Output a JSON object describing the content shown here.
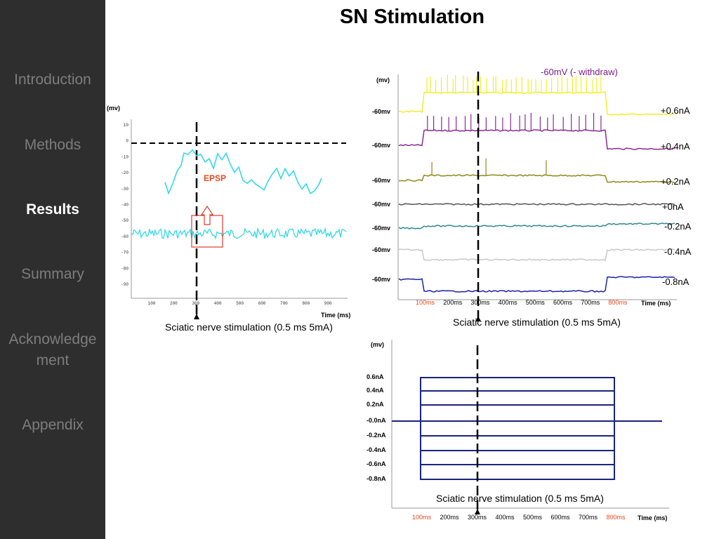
{
  "sidebar": {
    "items": [
      {
        "label": "Introduction",
        "active": false
      },
      {
        "label": "Methods",
        "active": false
      },
      {
        "label": "Results",
        "active": true
      },
      {
        "label": "Summary",
        "active": false
      },
      {
        "label": "Acknowledge ment",
        "active": false
      },
      {
        "label": "Appendix",
        "active": false
      }
    ]
  },
  "slide": {
    "title": "SN Stimulation"
  },
  "colors": {
    "sidebar_bg": "#2e2e2e",
    "sidebar_text": "#7d7d7d",
    "active_text": "#ffffff",
    "trace_cyan": "#35d8e8",
    "epsp_red": "#e8481c",
    "protocol_navy": "#1a237e"
  },
  "left_panel": {
    "ylabel": "(mv)",
    "yticks": [
      "10",
      "0",
      "-10",
      "-20",
      "-30",
      "-40",
      "-50",
      "-60",
      "-70",
      "-80",
      "-90"
    ],
    "xticks": [
      "100",
      "200",
      "300",
      "400",
      "500",
      "600",
      "700",
      "800",
      "900"
    ],
    "xlabel": "Time (ms)",
    "epsp_label": "EPSP",
    "caption": "Sciatic nerve stimulation (0.5 ms 5mA)"
  },
  "right_panel": {
    "ylabel": "(mv)",
    "annotation": "-60mV (- withdraw)",
    "trace_ylabels": [
      "-60mv",
      "-60mv",
      "-60mv",
      "-60mv",
      "-60mv",
      "-60mv",
      "-60mv"
    ],
    "trace_currents": [
      "+0.6nA",
      "+0.4nA",
      "+0.2nA",
      "+0nA",
      "-0.2nA",
      "-0.4nA",
      "-0.8nA"
    ],
    "trace_colors": [
      "#f2ee2a",
      "#8a2a92",
      "#8e8a1a",
      "#555555",
      "#2a8a8e",
      "#c8c8c8",
      "#1a22a8"
    ],
    "xticks": [
      "100ms",
      "200ms",
      "300ms",
      "400ms",
      "500ms",
      "600ms",
      "700ms",
      "800ms"
    ],
    "xlabel": "Time (ms)",
    "caption": "Sciatic nerve stimulation (0.5 ms 5mA)"
  },
  "protocol_panel": {
    "ylabel": "(mv)",
    "levels": [
      "0.6nA",
      "0.4nA",
      "0.2nA",
      "-0.0nA",
      "-0.2nA",
      "-0.4nA",
      "-0.6nA",
      "-0.8nA"
    ],
    "xticks": [
      "100ms",
      "200ms",
      "300ms",
      "400ms",
      "500ms",
      "600ms",
      "700ms",
      "800ms"
    ],
    "xlabel": "Time (ms)",
    "caption": "Sciatic nerve stimulation (0.5 ms 5mA)"
  }
}
